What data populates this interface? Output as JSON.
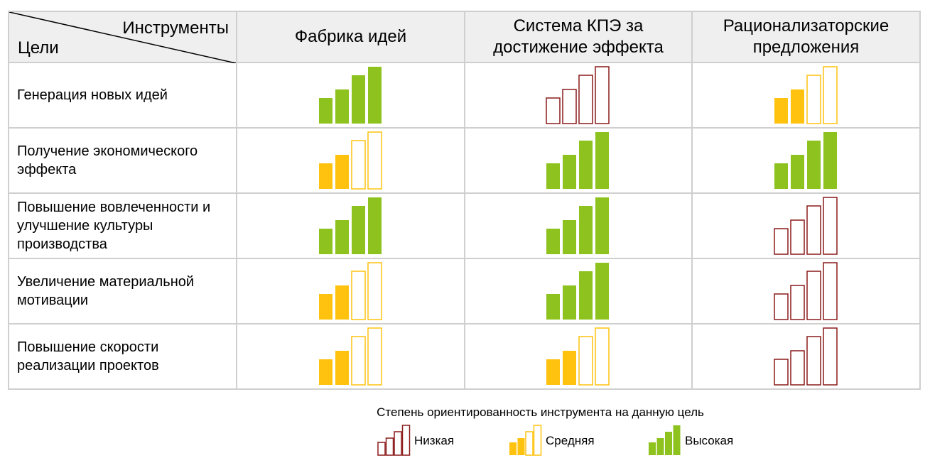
{
  "header": {
    "corner_tools": "Инструменты",
    "corner_goals": "Цели",
    "tools": [
      "Фабрика идей",
      "Система КПЭ за достижение эффекта",
      "Рационализаторские предложения"
    ]
  },
  "goals": [
    {
      "label": "Генерация новых идей",
      "ratings": [
        "high",
        "low",
        "medium"
      ]
    },
    {
      "label": "Получение экономического эффекта",
      "ratings": [
        "medium",
        "high",
        "high"
      ]
    },
    {
      "label": "Повышение вовлеченности и улучшение культуры производства",
      "ratings": [
        "high",
        "high",
        "low"
      ]
    },
    {
      "label": "Увеличение материальной мотивации",
      "ratings": [
        "medium",
        "high",
        "low"
      ]
    },
    {
      "label": "Повышение скорости реализации проектов",
      "ratings": [
        "medium",
        "medium",
        "low"
      ]
    }
  ],
  "legend": {
    "title": "Степень ориентированность инструмента на данную цель",
    "items": [
      {
        "level": "low",
        "label": "Низкая"
      },
      {
        "level": "medium",
        "label": "Средняя"
      },
      {
        "level": "high",
        "label": "Высокая"
      }
    ]
  },
  "levels": {
    "low": {
      "filled_bars": 0,
      "color": "#8b1a1a"
    },
    "medium": {
      "filled_bars": 2,
      "color": "#ffc20e"
    },
    "high": {
      "filled_bars": 4,
      "color": "#8dc21f"
    }
  }
}
